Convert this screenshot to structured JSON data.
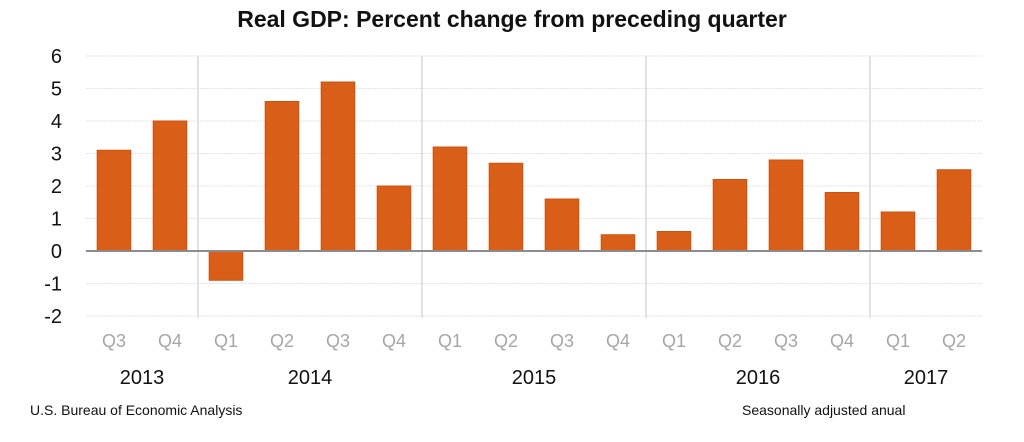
{
  "chart_data": {
    "type": "bar",
    "title": "Real GDP:  Percent change from preceding quarter",
    "xlabel": "",
    "ylabel": "",
    "ylim": [
      -2,
      6
    ],
    "yticks": [
      "6",
      "5",
      "4",
      "3",
      "2",
      "1",
      "0",
      "-1",
      "-2"
    ],
    "ytick_values": [
      6,
      5,
      4,
      3,
      2,
      1,
      0,
      -1,
      -2
    ],
    "grid": true,
    "bar_color": "#d95f18",
    "categories": [
      "Q3",
      "Q4",
      "Q1",
      "Q2",
      "Q3",
      "Q4",
      "Q1",
      "Q2",
      "Q3",
      "Q4",
      "Q1",
      "Q2",
      "Q3",
      "Q4",
      "Q1",
      "Q2"
    ],
    "category_years": [
      "2013",
      "2013",
      "2014",
      "2014",
      "2014",
      "2014",
      "2015",
      "2015",
      "2015",
      "2015",
      "2016",
      "2016",
      "2016",
      "2016",
      "2017",
      "2017"
    ],
    "year_groups": [
      {
        "label": "2013",
        "start": 0,
        "count": 2
      },
      {
        "label": "2014",
        "start": 2,
        "count": 4
      },
      {
        "label": "2015",
        "start": 6,
        "count": 4
      },
      {
        "label": "2016",
        "start": 10,
        "count": 4
      },
      {
        "label": "2017",
        "start": 14,
        "count": 2
      }
    ],
    "values": [
      3.1,
      4.0,
      -0.9,
      4.6,
      5.2,
      2.0,
      3.2,
      2.7,
      1.6,
      0.5,
      0.6,
      2.2,
      2.8,
      1.8,
      1.2,
      2.5
    ],
    "legend": null
  },
  "footer": {
    "source": "U.S. Bureau of Economic Analysis",
    "note": "Seasonally adjusted anual"
  }
}
